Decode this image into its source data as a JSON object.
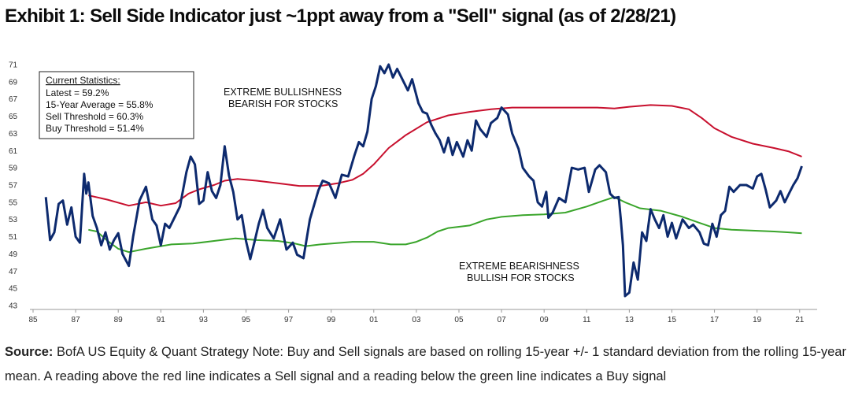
{
  "title": "Exhibit 1: Sell Side Indicator just ~1ppt away from a \"Sell\" signal (as of 2/28/21)",
  "source": {
    "label": "Source:",
    "text": "BofA US Equity & Quant Strategy Note: Buy and Sell signals are based on rolling 15-year +/- 1 standard deviation from the rolling 15-year mean. A reading above the red line indicates a Sell signal and a reading below the green line indicates a Buy signal"
  },
  "stats": {
    "heading": "Current Statistics:",
    "lines": [
      "Latest = 59.2%",
      "15-Year Average = 55.8%",
      "Sell Threshold = 60.3%",
      "Buy Threshold = 51.4%"
    ]
  },
  "annotations": {
    "bull_1": "EXTREME BULLISHNESS",
    "bull_2": "BEARISH FOR STOCKS",
    "bear_1": "EXTREME BEARISHNESS",
    "bear_2": "BULLISH FOR STOCKS"
  },
  "chart_data": {
    "type": "line",
    "title": "Exhibit 1: Sell Side Indicator just ~1ppt away from a \"Sell\" signal (as of 2/28/21)",
    "xlabel": "",
    "ylabel": "",
    "xlim": [
      1985,
      2021.6
    ],
    "ylim": [
      43,
      71
    ],
    "x_ticks": [
      "85",
      "87",
      "89",
      "91",
      "93",
      "95",
      "97",
      "99",
      "01",
      "03",
      "05",
      "07",
      "09",
      "11",
      "13",
      "15",
      "17",
      "19",
      "21"
    ],
    "y_ticks": [
      43,
      45,
      47,
      49,
      51,
      53,
      55,
      57,
      59,
      61,
      63,
      65,
      67,
      69,
      71
    ],
    "colors": {
      "indicator": "#0d2a6e",
      "sell": "#c8102e",
      "buy": "#3aa52b"
    },
    "series": [
      {
        "name": "Sell Side Indicator",
        "color": "#0d2a6e",
        "points": [
          [
            1985.6,
            55.6
          ],
          [
            1985.8,
            50.6
          ],
          [
            1986.0,
            51.5
          ],
          [
            1986.2,
            54.8
          ],
          [
            1986.4,
            55.2
          ],
          [
            1986.6,
            52.4
          ],
          [
            1986.8,
            54.4
          ],
          [
            1987.0,
            51.0
          ],
          [
            1987.2,
            50.3
          ],
          [
            1987.4,
            58.3
          ],
          [
            1987.5,
            56.0
          ],
          [
            1987.6,
            57.3
          ],
          [
            1987.8,
            53.4
          ],
          [
            1988.0,
            52.0
          ],
          [
            1988.2,
            50.0
          ],
          [
            1988.4,
            51.5
          ],
          [
            1988.6,
            49.5
          ],
          [
            1988.8,
            50.6
          ],
          [
            1989.0,
            51.4
          ],
          [
            1989.2,
            49.0
          ],
          [
            1989.5,
            47.6
          ],
          [
            1989.7,
            51.0
          ],
          [
            1990.0,
            55.2
          ],
          [
            1990.3,
            56.8
          ],
          [
            1990.6,
            53.0
          ],
          [
            1990.8,
            52.3
          ],
          [
            1991.0,
            50.0
          ],
          [
            1991.2,
            52.5
          ],
          [
            1991.4,
            52.0
          ],
          [
            1991.6,
            53.0
          ],
          [
            1991.9,
            54.5
          ],
          [
            1992.2,
            58.5
          ],
          [
            1992.4,
            60.3
          ],
          [
            1992.6,
            59.4
          ],
          [
            1992.8,
            54.8
          ],
          [
            1993.0,
            55.2
          ],
          [
            1993.2,
            58.5
          ],
          [
            1993.4,
            56.3
          ],
          [
            1993.6,
            55.5
          ],
          [
            1993.8,
            57.0
          ],
          [
            1994.0,
            61.5
          ],
          [
            1994.2,
            58.1
          ],
          [
            1994.4,
            56.2
          ],
          [
            1994.6,
            53.0
          ],
          [
            1994.8,
            53.5
          ],
          [
            1995.0,
            50.5
          ],
          [
            1995.2,
            48.4
          ],
          [
            1995.4,
            50.4
          ],
          [
            1995.6,
            52.5
          ],
          [
            1995.8,
            54.1
          ],
          [
            1996.0,
            52.0
          ],
          [
            1996.3,
            50.8
          ],
          [
            1996.6,
            53.0
          ],
          [
            1996.9,
            49.5
          ],
          [
            1997.2,
            50.3
          ],
          [
            1997.4,
            48.9
          ],
          [
            1997.7,
            48.5
          ],
          [
            1998.0,
            53.0
          ],
          [
            1998.4,
            56.4
          ],
          [
            1998.6,
            57.5
          ],
          [
            1998.9,
            57.2
          ],
          [
            1999.2,
            55.5
          ],
          [
            1999.5,
            58.2
          ],
          [
            1999.8,
            58.0
          ],
          [
            2000.1,
            60.5
          ],
          [
            2000.3,
            62.0
          ],
          [
            2000.5,
            61.5
          ],
          [
            2000.7,
            63.2
          ],
          [
            2000.9,
            67.0
          ],
          [
            2001.1,
            68.5
          ],
          [
            2001.3,
            70.8
          ],
          [
            2001.5,
            70.0
          ],
          [
            2001.7,
            71.0
          ],
          [
            2001.9,
            69.5
          ],
          [
            2002.1,
            70.5
          ],
          [
            2002.4,
            69.0
          ],
          [
            2002.6,
            68.0
          ],
          [
            2002.8,
            69.3
          ],
          [
            2003.1,
            66.5
          ],
          [
            2003.3,
            65.5
          ],
          [
            2003.5,
            65.3
          ],
          [
            2003.7,
            64.0
          ],
          [
            2003.9,
            63.0
          ],
          [
            2004.1,
            62.2
          ],
          [
            2004.3,
            60.8
          ],
          [
            2004.5,
            62.5
          ],
          [
            2004.7,
            60.5
          ],
          [
            2004.9,
            62.0
          ],
          [
            2005.2,
            60.3
          ],
          [
            2005.4,
            62.2
          ],
          [
            2005.6,
            61.0
          ],
          [
            2005.8,
            64.5
          ],
          [
            2006.0,
            63.5
          ],
          [
            2006.3,
            62.6
          ],
          [
            2006.5,
            64.2
          ],
          [
            2006.8,
            64.8
          ],
          [
            2007.0,
            66.0
          ],
          [
            2007.3,
            65.2
          ],
          [
            2007.5,
            63.0
          ],
          [
            2007.8,
            61.2
          ],
          [
            2008.0,
            59.0
          ],
          [
            2008.3,
            58.0
          ],
          [
            2008.5,
            57.5
          ],
          [
            2008.7,
            55.0
          ],
          [
            2008.9,
            54.5
          ],
          [
            2009.1,
            56.2
          ],
          [
            2009.2,
            53.2
          ],
          [
            2009.4,
            53.8
          ],
          [
            2009.7,
            55.5
          ],
          [
            2010.0,
            55.0
          ],
          [
            2010.3,
            59.0
          ],
          [
            2010.6,
            58.8
          ],
          [
            2010.9,
            59.0
          ],
          [
            2011.1,
            56.2
          ],
          [
            2011.4,
            58.8
          ],
          [
            2011.6,
            59.3
          ],
          [
            2011.9,
            58.5
          ],
          [
            2012.1,
            56.0
          ],
          [
            2012.3,
            55.5
          ],
          [
            2012.5,
            55.6
          ],
          [
            2012.6,
            53.0
          ],
          [
            2012.7,
            50.0
          ],
          [
            2012.8,
            44.1
          ],
          [
            2013.0,
            44.5
          ],
          [
            2013.2,
            48.0
          ],
          [
            2013.4,
            46.0
          ],
          [
            2013.6,
            51.5
          ],
          [
            2013.8,
            50.5
          ],
          [
            2014.0,
            54.2
          ],
          [
            2014.2,
            53.0
          ],
          [
            2014.4,
            52.0
          ],
          [
            2014.6,
            53.5
          ],
          [
            2014.8,
            51.0
          ],
          [
            2015.0,
            52.6
          ],
          [
            2015.2,
            50.8
          ],
          [
            2015.5,
            53.0
          ],
          [
            2015.8,
            52.0
          ],
          [
            2016.0,
            52.4
          ],
          [
            2016.3,
            51.5
          ],
          [
            2016.5,
            50.2
          ],
          [
            2016.7,
            50.0
          ],
          [
            2016.9,
            52.5
          ],
          [
            2017.1,
            51.0
          ],
          [
            2017.3,
            53.5
          ],
          [
            2017.5,
            54.0
          ],
          [
            2017.7,
            56.8
          ],
          [
            2017.9,
            56.2
          ],
          [
            2018.2,
            57.0
          ],
          [
            2018.5,
            57.0
          ],
          [
            2018.8,
            56.6
          ],
          [
            2019.0,
            58.0
          ],
          [
            2019.2,
            58.3
          ],
          [
            2019.4,
            56.5
          ],
          [
            2019.6,
            54.4
          ],
          [
            2019.9,
            55.2
          ],
          [
            2020.1,
            56.3
          ],
          [
            2020.3,
            55.0
          ],
          [
            2020.5,
            56.0
          ],
          [
            2020.7,
            57.0
          ],
          [
            2020.9,
            57.8
          ],
          [
            2021.1,
            59.2
          ]
        ]
      },
      {
        "name": "Sell Threshold",
        "color": "#c8102e",
        "points": [
          [
            1987.6,
            55.8
          ],
          [
            1988.5,
            55.3
          ],
          [
            1989.5,
            54.6
          ],
          [
            1990.3,
            55.0
          ],
          [
            1991.0,
            54.6
          ],
          [
            1991.7,
            54.9
          ],
          [
            1992.3,
            56.0
          ],
          [
            1992.8,
            56.5
          ],
          [
            1993.5,
            57.0
          ],
          [
            1994.0,
            57.5
          ],
          [
            1994.6,
            57.7
          ],
          [
            1995.5,
            57.5
          ],
          [
            1996.5,
            57.2
          ],
          [
            1997.5,
            56.9
          ],
          [
            1998.5,
            56.9
          ],
          [
            1999.3,
            57.2
          ],
          [
            2000.0,
            57.6
          ],
          [
            2000.5,
            58.3
          ],
          [
            2001.0,
            59.4
          ],
          [
            2001.7,
            61.3
          ],
          [
            2002.5,
            62.8
          ],
          [
            2003.5,
            64.3
          ],
          [
            2004.5,
            65.1
          ],
          [
            2005.5,
            65.5
          ],
          [
            2006.5,
            65.8
          ],
          [
            2007.5,
            66.0
          ],
          [
            2008.5,
            66.0
          ],
          [
            2009.5,
            66.0
          ],
          [
            2010.5,
            66.0
          ],
          [
            2011.5,
            66.0
          ],
          [
            2012.3,
            65.9
          ],
          [
            2013.0,
            66.1
          ],
          [
            2014.0,
            66.3
          ],
          [
            2015.0,
            66.2
          ],
          [
            2015.8,
            65.8
          ],
          [
            2016.4,
            64.8
          ],
          [
            2017.0,
            63.6
          ],
          [
            2017.8,
            62.6
          ],
          [
            2018.8,
            61.8
          ],
          [
            2019.8,
            61.3
          ],
          [
            2020.5,
            60.9
          ],
          [
            2021.1,
            60.3
          ]
        ]
      },
      {
        "name": "Buy Threshold",
        "color": "#3aa52b",
        "points": [
          [
            1987.6,
            51.8
          ],
          [
            1988.0,
            51.6
          ],
          [
            1988.5,
            50.5
          ],
          [
            1989.0,
            49.6
          ],
          [
            1989.5,
            49.2
          ],
          [
            1990.3,
            49.6
          ],
          [
            1991.5,
            50.1
          ],
          [
            1992.5,
            50.2
          ],
          [
            1993.5,
            50.5
          ],
          [
            1994.5,
            50.8
          ],
          [
            1995.5,
            50.6
          ],
          [
            1996.5,
            50.5
          ],
          [
            1997.3,
            50.2
          ],
          [
            1997.8,
            49.9
          ],
          [
            1998.5,
            50.1
          ],
          [
            1999.5,
            50.3
          ],
          [
            2000.0,
            50.4
          ],
          [
            2001.0,
            50.4
          ],
          [
            2001.8,
            50.1
          ],
          [
            2002.5,
            50.1
          ],
          [
            2003.0,
            50.4
          ],
          [
            2003.5,
            50.9
          ],
          [
            2004.0,
            51.6
          ],
          [
            2004.5,
            52.0
          ],
          [
            2005.5,
            52.3
          ],
          [
            2006.3,
            53.0
          ],
          [
            2007.0,
            53.3
          ],
          [
            2008.0,
            53.5
          ],
          [
            2009.0,
            53.6
          ],
          [
            2010.0,
            53.8
          ],
          [
            2011.0,
            54.5
          ],
          [
            2011.8,
            55.2
          ],
          [
            2012.3,
            55.6
          ],
          [
            2012.8,
            55.0
          ],
          [
            2013.5,
            54.3
          ],
          [
            2014.5,
            54.0
          ],
          [
            2015.5,
            53.3
          ],
          [
            2016.3,
            52.6
          ],
          [
            2017.0,
            52.0
          ],
          [
            2017.8,
            51.8
          ],
          [
            2018.8,
            51.7
          ],
          [
            2019.8,
            51.6
          ],
          [
            2020.5,
            51.5
          ],
          [
            2021.1,
            51.4
          ]
        ]
      }
    ]
  }
}
